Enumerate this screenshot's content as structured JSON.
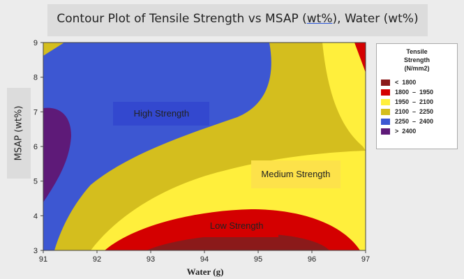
{
  "chart_data": {
    "type": "contour",
    "title_parts": [
      "Contour Plot of Tensile Strength vs MSAP (",
      "wt%",
      "), Water (wt%)"
    ],
    "xlabel": "Water (g)",
    "ylabel": "MSAP (wt%)",
    "xlim": [
      91,
      97
    ],
    "ylim": [
      3,
      9
    ],
    "xticks": [
      91,
      92,
      93,
      94,
      95,
      96,
      97
    ],
    "yticks": [
      3,
      4,
      5,
      6,
      7,
      8,
      9
    ],
    "legend": {
      "title": [
        "Tensile",
        "Strength",
        "(N/mm2)"
      ],
      "entries": [
        {
          "label": "<  1800",
          "color": "#8b1a1a"
        },
        {
          "label": "1800  –  1950",
          "color": "#d40000"
        },
        {
          "label": "1950  –  2100",
          "color": "#ffef3c"
        },
        {
          "label": "2100  –  2250",
          "color": "#d4be1e"
        },
        {
          "label": "2250  –  2400",
          "color": "#3d57d2"
        },
        {
          "label": ">  2400",
          "color": "#5e1a78"
        }
      ],
      "position": "right"
    },
    "annotations": [
      {
        "text": "High Strength",
        "x": 93.2,
        "y": 6.95,
        "bg": "#3348cf"
      },
      {
        "text": "Medium Strength",
        "x": 95.7,
        "y": 5.2,
        "bg": "#fde24a"
      },
      {
        "text": "Low Strength",
        "x": 94.6,
        "y": 3.7,
        "bg": "#d40000"
      }
    ]
  }
}
